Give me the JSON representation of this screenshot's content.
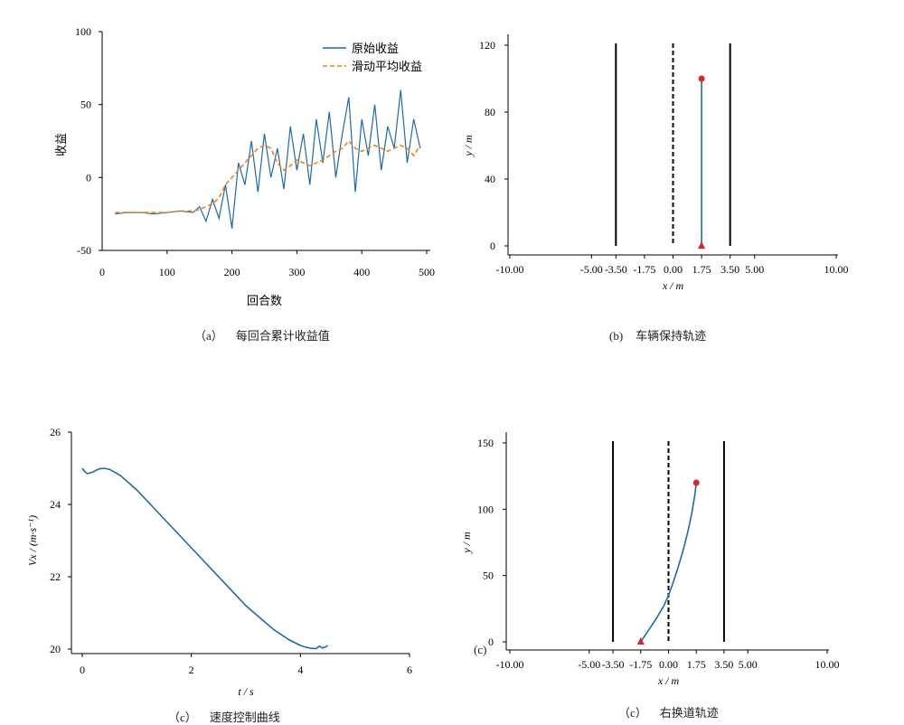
{
  "colors": {
    "raw": "#1f6aa5",
    "avg": "#f07f1b",
    "marker": "#d62728",
    "axis": "#000000"
  },
  "captions": {
    "a": {
      "tag": "（a）",
      "text": "每回合累计收益值"
    },
    "b": {
      "tag": "(b)",
      "text": "车辆保持轨迹"
    },
    "c1": {
      "tag": "（c）",
      "text": "速度控制曲线"
    },
    "c2": {
      "tag": "（c）",
      "text": "右换道轨迹"
    },
    "stray": "(c)"
  },
  "chart_data": [
    {
      "id": "a",
      "type": "line",
      "xlabel": "回合数",
      "ylabel": "收益",
      "xlim": [
        0,
        500
      ],
      "ylim": [
        -50,
        100
      ],
      "xticks": [
        100,
        200,
        300,
        400,
        500
      ],
      "yticks": [
        -50,
        0,
        50,
        100
      ],
      "legend_position": "top-right",
      "series": [
        {
          "name": "原始收益",
          "style": "solid",
          "x": [
            20,
            40,
            60,
            80,
            100,
            120,
            140,
            150,
            160,
            170,
            180,
            190,
            200,
            210,
            220,
            230,
            240,
            250,
            260,
            270,
            280,
            290,
            300,
            310,
            320,
            330,
            340,
            350,
            360,
            370,
            380,
            390,
            400,
            410,
            420,
            430,
            440,
            450,
            460,
            470,
            480,
            490
          ],
          "y": [
            -25,
            -24,
            -24,
            -25,
            -24,
            -23,
            -24,
            -20,
            -30,
            -15,
            -28,
            -5,
            -35,
            10,
            -5,
            25,
            -10,
            30,
            0,
            20,
            -8,
            35,
            5,
            30,
            -5,
            40,
            10,
            45,
            0,
            30,
            55,
            -10,
            40,
            15,
            50,
            5,
            35,
            20,
            60,
            10,
            40,
            20
          ]
        },
        {
          "name": "滑动平均收益",
          "style": "dashed",
          "x": [
            20,
            40,
            60,
            80,
            100,
            120,
            140,
            150,
            160,
            170,
            180,
            190,
            200,
            210,
            220,
            230,
            240,
            250,
            260,
            270,
            280,
            290,
            300,
            310,
            320,
            330,
            340,
            350,
            360,
            370,
            380,
            390,
            400,
            410,
            420,
            430,
            440,
            450,
            460,
            470,
            480,
            490
          ],
          "y": [
            -24,
            -24,
            -24,
            -24,
            -24,
            -23,
            -23,
            -22,
            -20,
            -18,
            -14,
            -5,
            0,
            5,
            10,
            15,
            20,
            22,
            20,
            10,
            5,
            8,
            12,
            10,
            8,
            10,
            12,
            15,
            18,
            20,
            25,
            20,
            18,
            20,
            22,
            20,
            18,
            20,
            22,
            20,
            15,
            22
          ]
        }
      ]
    },
    {
      "id": "b",
      "type": "line",
      "xlabel": "x / m",
      "ylabel": "y / m",
      "xlim": [
        -10,
        10
      ],
      "ylim": [
        0,
        120
      ],
      "xtick_labels": [
        "-10.00",
        "-5.00",
        "-3.50",
        "-1.75",
        "0.00",
        "1.75",
        "3.50",
        "5.00",
        "10.00"
      ],
      "yticks": [
        0,
        40,
        80,
        120
      ],
      "lane_lines": [
        {
          "x": -3.5,
          "style": "solid"
        },
        {
          "x": 0,
          "style": "dashed"
        },
        {
          "x": 3.5,
          "style": "solid"
        }
      ],
      "series": [
        {
          "x": [
            1.75,
            1.75
          ],
          "y": [
            0,
            100
          ]
        }
      ],
      "start_marker": {
        "x": 1.75,
        "y": 0,
        "shape": "triangle"
      },
      "end_marker": {
        "x": 1.75,
        "y": 100,
        "shape": "circle"
      }
    },
    {
      "id": "c1",
      "type": "line",
      "xlabel": "t / s",
      "ylabel": "Vx / (m·s⁻¹)",
      "xlim": [
        0,
        6
      ],
      "ylim": [
        20,
        26
      ],
      "xticks": [
        0,
        2,
        4,
        6
      ],
      "yticks": [
        20,
        22,
        24,
        26
      ],
      "series": [
        {
          "x": [
            0,
            0.05,
            0.1,
            0.2,
            0.3,
            0.4,
            0.5,
            0.7,
            1.0,
            1.5,
            2.0,
            2.5,
            3.0,
            3.5,
            3.8,
            4.0,
            4.1,
            4.2,
            4.28,
            4.35,
            4.4,
            4.45,
            4.5
          ],
          "y": [
            25.0,
            24.9,
            24.85,
            24.9,
            24.98,
            25.0,
            24.97,
            24.8,
            24.4,
            23.6,
            22.8,
            22.0,
            21.2,
            20.55,
            20.25,
            20.1,
            20.05,
            20.02,
            20.01,
            20.08,
            20.03,
            20.05,
            20.1
          ]
        }
      ]
    },
    {
      "id": "c2",
      "type": "line",
      "xlabel": "x / m",
      "ylabel": "y / m",
      "xlim": [
        -10,
        10
      ],
      "ylim": [
        0,
        150
      ],
      "xtick_labels": [
        "-10.00",
        "-5.00",
        "-3.50",
        "-1.75",
        "0.00",
        "1.75",
        "3.50",
        "5.00",
        "10.00"
      ],
      "yticks": [
        0,
        50,
        100,
        150
      ],
      "lane_lines": [
        {
          "x": -3.5,
          "style": "solid"
        },
        {
          "x": 0,
          "style": "dashed"
        },
        {
          "x": 3.5,
          "style": "solid"
        }
      ],
      "series": [
        {
          "x": [
            -1.75,
            -1.3,
            -0.8,
            -0.3,
            0,
            0.3,
            0.6,
            0.9,
            1.2,
            1.45,
            1.65,
            1.75
          ],
          "y": [
            0,
            8,
            17,
            27,
            35,
            45,
            56,
            68,
            82,
            96,
            110,
            120
          ]
        }
      ],
      "start_marker": {
        "x": -1.75,
        "y": 0,
        "shape": "triangle"
      },
      "end_marker": {
        "x": 1.75,
        "y": 120,
        "shape": "circle"
      }
    }
  ]
}
